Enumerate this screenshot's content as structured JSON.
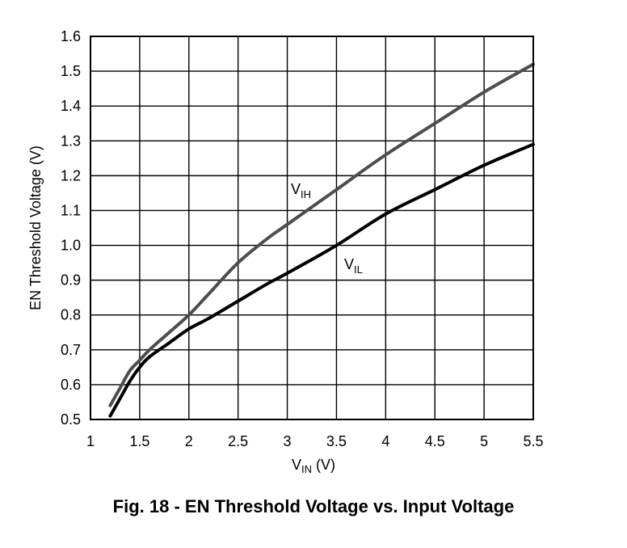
{
  "caption": "Fig. 18 - EN Threshold Voltage vs. Input Voltage",
  "chart_data": {
    "type": "line",
    "title": "Fig. 18 - EN Threshold Voltage vs. Input Voltage",
    "xlabel": {
      "main": "V",
      "sub": "IN",
      "unit": " (V)"
    },
    "ylabel": "EN Threshold Voltage (V)",
    "xlim": [
      1,
      5.5
    ],
    "ylim": [
      0.5,
      1.6
    ],
    "xticks": [
      "1",
      "1.5",
      "2",
      "2.5",
      "3",
      "3.5",
      "4",
      "4.5",
      "5",
      "5.5"
    ],
    "yticks": [
      "0.5",
      "0.6",
      "0.7",
      "0.8",
      "0.9",
      "1.0",
      "1.1",
      "1.2",
      "1.3",
      "1.4",
      "1.5",
      "1.6"
    ],
    "grid": true,
    "series": [
      {
        "name": "VIH",
        "label_main": "V",
        "label_sub": "IH",
        "color": "#4d4d4d",
        "x": [
          1.2,
          1.3,
          1.4,
          1.5,
          1.6,
          1.8,
          2.0,
          2.2,
          2.5,
          2.8,
          3.0,
          3.5,
          4.0,
          4.5,
          5.0,
          5.5
        ],
        "y": [
          0.54,
          0.59,
          0.64,
          0.67,
          0.7,
          0.75,
          0.8,
          0.86,
          0.95,
          1.02,
          1.06,
          1.16,
          1.26,
          1.35,
          1.44,
          1.52
        ]
      },
      {
        "name": "VIL",
        "label_main": "V",
        "label_sub": "IL",
        "color": "#000000",
        "x": [
          1.2,
          1.3,
          1.4,
          1.5,
          1.6,
          1.8,
          2.0,
          2.2,
          2.5,
          2.8,
          3.0,
          3.5,
          4.0,
          4.5,
          5.0,
          5.5
        ],
        "y": [
          0.51,
          0.56,
          0.61,
          0.65,
          0.68,
          0.72,
          0.76,
          0.79,
          0.84,
          0.89,
          0.92,
          1.0,
          1.09,
          1.16,
          1.23,
          1.29
        ]
      }
    ]
  }
}
